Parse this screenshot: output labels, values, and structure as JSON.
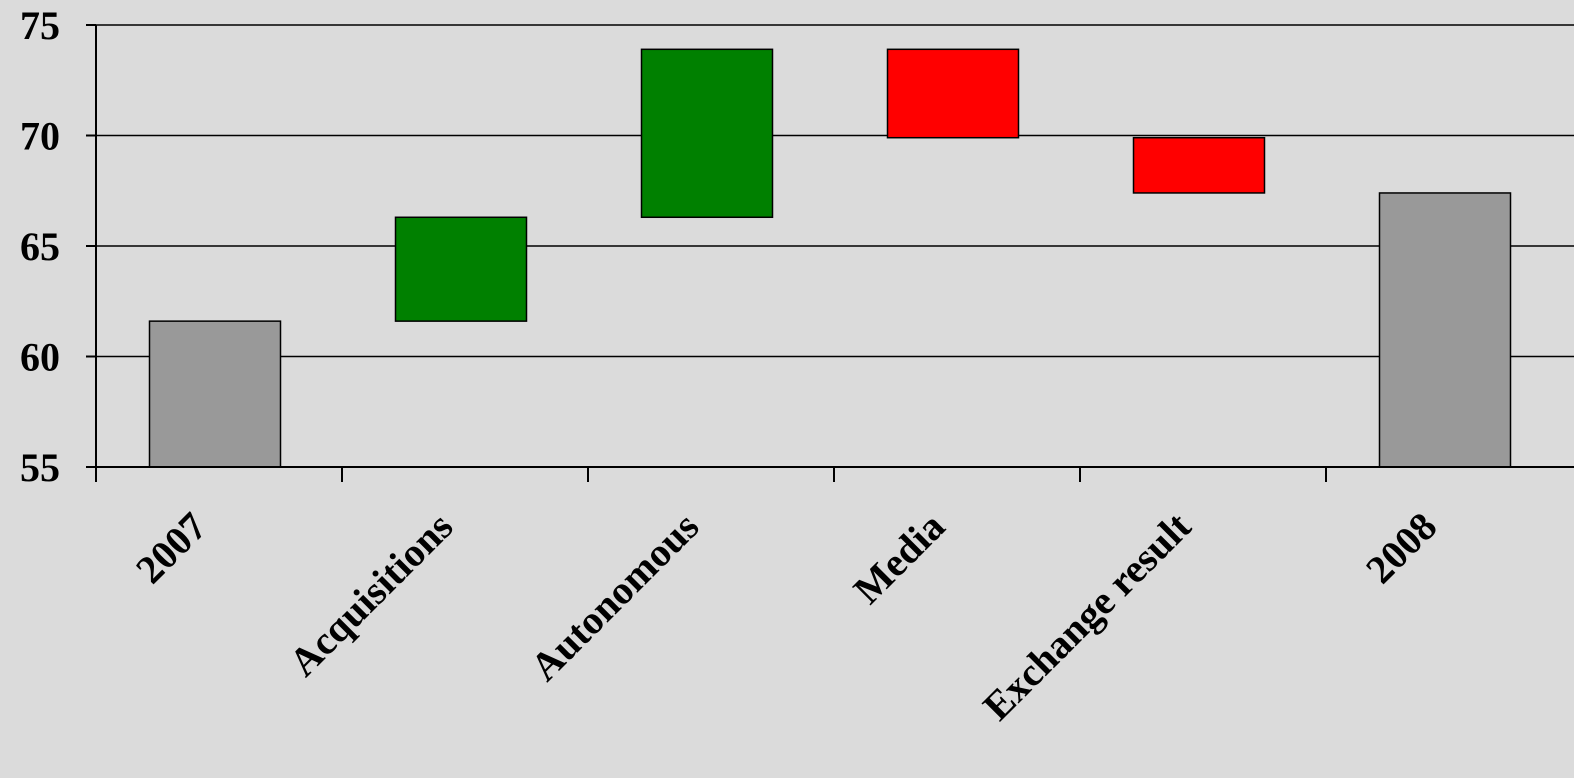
{
  "chart_data": {
    "type": "bar",
    "subtype": "waterfall",
    "title": "",
    "xlabel": "",
    "ylabel": "",
    "ylim": [
      55,
      75
    ],
    "yticks": [
      55,
      60,
      65,
      70,
      75
    ],
    "grid": true,
    "legend": "none",
    "categories": [
      "2007",
      "Acquisitions",
      "Autonomous",
      "Media",
      "Exchange result",
      "2008"
    ],
    "bars": [
      {
        "label": "2007",
        "kind": "total",
        "start": 55,
        "end": 61.6,
        "color": "#999999"
      },
      {
        "label": "Acquisitions",
        "kind": "increase",
        "start": 61.6,
        "end": 66.3,
        "color": "#008000"
      },
      {
        "label": "Autonomous",
        "kind": "increase",
        "start": 66.3,
        "end": 73.9,
        "color": "#008000"
      },
      {
        "label": "Media",
        "kind": "decrease",
        "start": 73.9,
        "end": 69.9,
        "color": "#ff0000"
      },
      {
        "label": "Exchange result",
        "kind": "decrease",
        "start": 69.9,
        "end": 67.4,
        "color": "#ff0000"
      },
      {
        "label": "2008",
        "kind": "total",
        "start": 55,
        "end": 67.4,
        "color": "#999999"
      }
    ]
  }
}
